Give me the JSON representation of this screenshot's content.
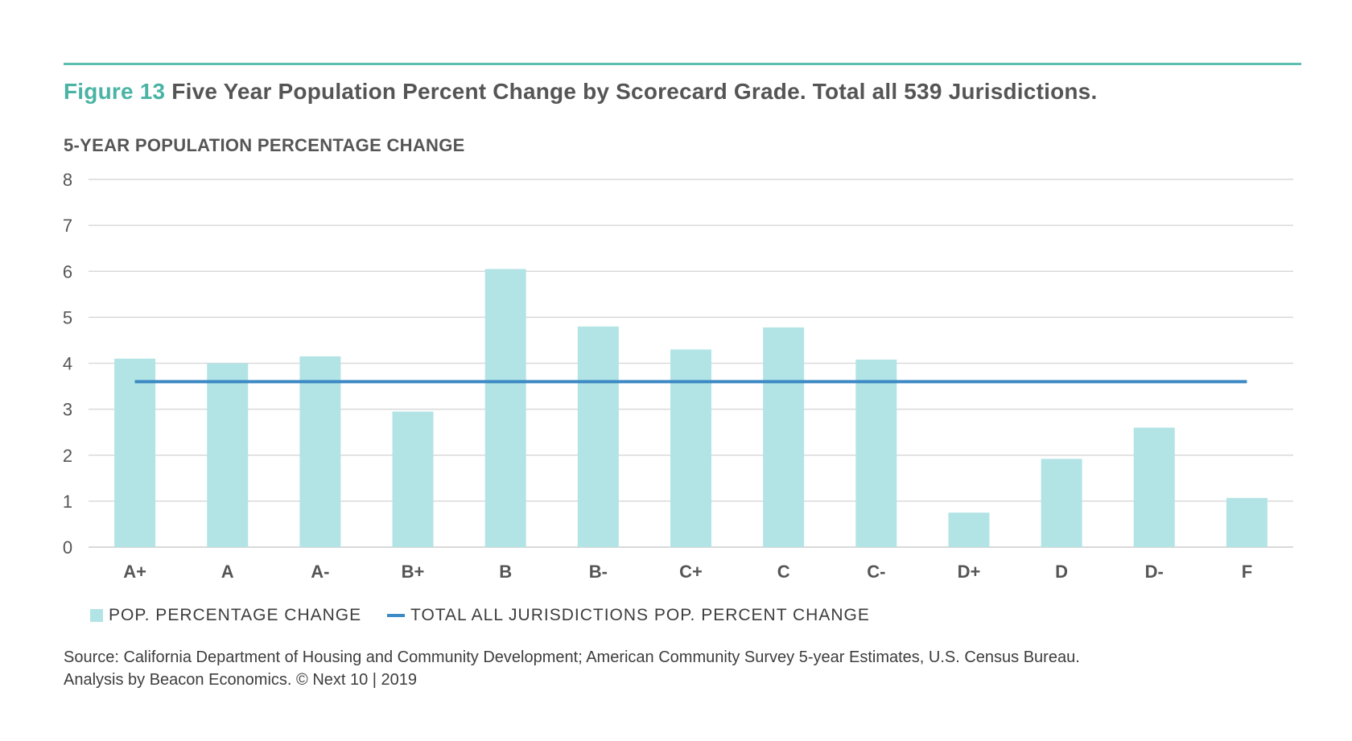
{
  "figure": {
    "number_label": "Figure 13",
    "title": "Five Year Population Percent Change by Scorecard Grade. Total all 539 Jurisdictions."
  },
  "chart_data": {
    "type": "bar",
    "title": "Five Year Population Percent Change by Scorecard Grade. Total all 539 Jurisdictions.",
    "ylabel": "5-YEAR POPULATION PERCENTAGE CHANGE",
    "xlabel": "",
    "categories": [
      "A+",
      "A",
      "A-",
      "B+",
      "B",
      "B-",
      "C+",
      "C",
      "C-",
      "D+",
      "D",
      "D-",
      "F"
    ],
    "series": [
      {
        "name": "POP. PERCENTAGE CHANGE",
        "type": "bar",
        "color": "#b3e4e5",
        "values": [
          4.1,
          4.0,
          4.15,
          2.95,
          6.05,
          4.8,
          4.3,
          4.78,
          4.08,
          0.75,
          1.92,
          2.6,
          1.07
        ]
      },
      {
        "name": "TOTAL ALL JURISDICTIONS POP. PERCENT CHANGE",
        "type": "line",
        "color": "#3d8ac4",
        "values": [
          3.6,
          3.6,
          3.6,
          3.6,
          3.6,
          3.6,
          3.6,
          3.6,
          3.6,
          3.6,
          3.6,
          3.6,
          3.6
        ]
      }
    ],
    "ylim": [
      0,
      8
    ],
    "yticks": [
      "0",
      "1",
      "2",
      "3",
      "4",
      "5",
      "6",
      "7",
      "8"
    ],
    "grid": true,
    "legend": "bottom-left"
  },
  "legend": {
    "bar_label": "POP. PERCENTAGE CHANGE",
    "line_label": "TOTAL ALL JURISDICTIONS POP. PERCENT CHANGE"
  },
  "source": {
    "line1": "Source: California Department of Housing and Community Development; American Community Survey 5-year Estimates, U.S. Census Bureau.",
    "line2": "Analysis by Beacon Economics.  © Next 10 | 2019"
  },
  "colors": {
    "accent": "#4ab4a4",
    "rule": "#5cbfaf",
    "bar": "#b3e4e5",
    "line": "#3d8ac4",
    "grid": "#d9d9d9",
    "text": "#555555"
  }
}
